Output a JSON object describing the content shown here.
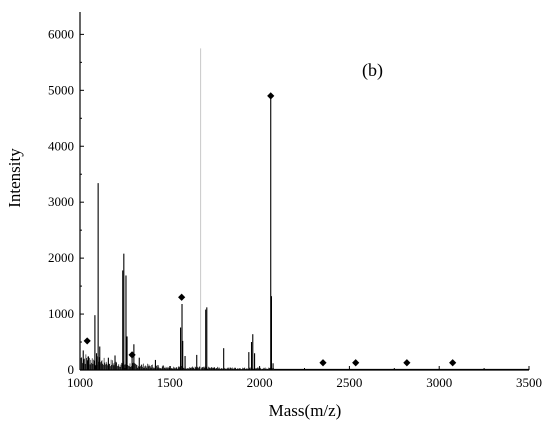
{
  "chart_data": {
    "type": "line",
    "panel_label": "(b)",
    "xlabel": "Mass(m/z)",
    "ylabel": "Intensity",
    "xlim": [
      1000,
      3500
    ],
    "ylim": [
      0,
      6400
    ],
    "xticks": [
      1000,
      1500,
      2000,
      2500,
      3000,
      3500
    ],
    "yticks": [
      0,
      1000,
      2000,
      3000,
      4000,
      5000,
      6000
    ],
    "grid": false,
    "legend": "none",
    "series_color": "#000000",
    "gray_line_color": "#bbbbbb",
    "peaks": [
      {
        "x": 1018,
        "y": 350
      },
      {
        "x": 1045,
        "y": 240
      },
      {
        "x": 1083,
        "y": 980
      },
      {
        "x": 1092,
        "y": 300
      },
      {
        "x": 1101,
        "y": 3340
      },
      {
        "x": 1110,
        "y": 420
      },
      {
        "x": 1158,
        "y": 220
      },
      {
        "x": 1195,
        "y": 260
      },
      {
        "x": 1238,
        "y": 1780
      },
      {
        "x": 1244,
        "y": 2080
      },
      {
        "x": 1256,
        "y": 1690
      },
      {
        "x": 1262,
        "y": 600
      },
      {
        "x": 1290,
        "y": 320
      },
      {
        "x": 1300,
        "y": 460
      },
      {
        "x": 1330,
        "y": 220
      },
      {
        "x": 1420,
        "y": 180
      },
      {
        "x": 1560,
        "y": 760
      },
      {
        "x": 1568,
        "y": 1180
      },
      {
        "x": 1572,
        "y": 520
      },
      {
        "x": 1585,
        "y": 250
      },
      {
        "x": 1650,
        "y": 270
      },
      {
        "x": 1700,
        "y": 1080
      },
      {
        "x": 1706,
        "y": 1120
      },
      {
        "x": 1800,
        "y": 390
      },
      {
        "x": 1940,
        "y": 320
      },
      {
        "x": 1955,
        "y": 500
      },
      {
        "x": 1962,
        "y": 640
      },
      {
        "x": 1972,
        "y": 300
      },
      {
        "x": 2062,
        "y": 4860
      },
      {
        "x": 2066,
        "y": 1320
      },
      {
        "x": 2075,
        "y": 120
      }
    ],
    "gray_line": {
      "x": 1672,
      "y": 5750
    },
    "markers": [
      {
        "x": 1040,
        "y": 520
      },
      {
        "x": 1290,
        "y": 270
      },
      {
        "x": 1566,
        "y": 1300
      },
      {
        "x": 2062,
        "y": 4900
      },
      {
        "x": 2353,
        "y": 130
      },
      {
        "x": 2535,
        "y": 130
      },
      {
        "x": 2820,
        "y": 130
      },
      {
        "x": 3075,
        "y": 130
      }
    ]
  }
}
